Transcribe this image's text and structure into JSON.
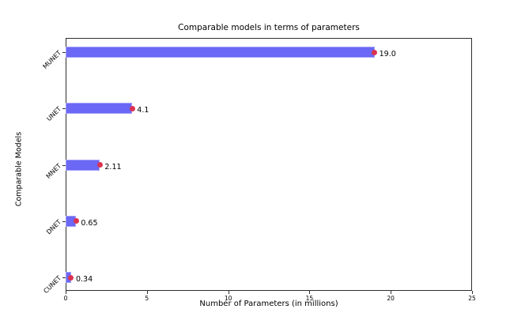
{
  "chart_data": {
    "type": "bar",
    "orientation": "horizontal",
    "title": "Comparable models in terms of parameters",
    "xlabel": "Number of Parameters (in millions)",
    "ylabel": "Comparable Models",
    "categories": [
      "MUNET",
      "UNET",
      "MNET",
      "DNET",
      "CUNET"
    ],
    "values": [
      19.0,
      4.1,
      2.11,
      0.65,
      0.34
    ],
    "value_labels": [
      "19.0",
      "4.1",
      "2.11",
      "0.65",
      "0.34"
    ],
    "xlim": [
      0,
      25
    ],
    "xticks": [
      0,
      5,
      10,
      15,
      20,
      25
    ],
    "grid": false,
    "legend": null,
    "bar_color": "#6a68f4",
    "bar_edge_color": "#a3a0f8",
    "error_marker_color": "#dc3350",
    "axis_color": "#2e2e2e",
    "background_color": "#ffffff"
  }
}
